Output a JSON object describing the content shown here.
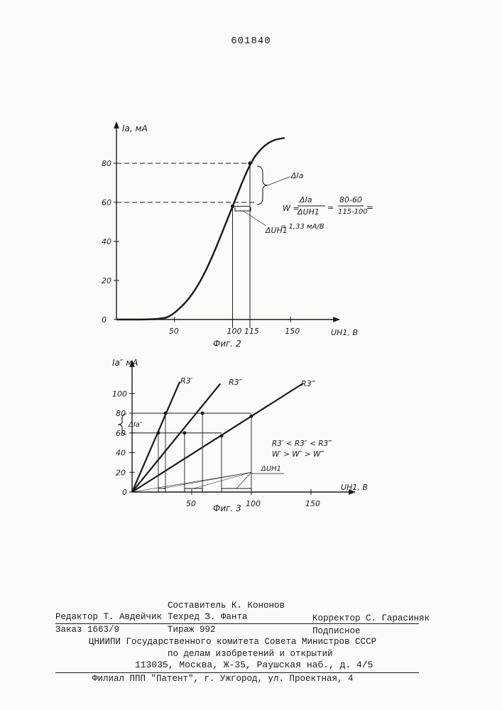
{
  "page_number": "601840",
  "figures": {
    "fig2": {
      "caption": "Фиг. 2",
      "y_axis_label": "Ia, мА",
      "x_axis_label": "UН1, В",
      "y_ticks": [
        "0",
        "20",
        "40",
        "60",
        "80"
      ],
      "x_ticks": [
        "50",
        "100",
        "115",
        "150"
      ],
      "delta_ia_label": "ΔIa",
      "delta_u_label": "ΔUН1",
      "formula_lhs": "W =",
      "formula_num": "ΔIa",
      "formula_den": "ΔUН1",
      "formula_eq": "=",
      "formula_num2": "80-60",
      "formula_den2": "115-100",
      "formula_eq2": "=",
      "formula_result": "= 1,33 мА/В"
    },
    "fig3": {
      "caption": "Фиг. 3",
      "y_axis_label": "Ia″ мА",
      "x_axis_label": "UН1, В",
      "y_ticks": [
        "0",
        "20",
        "40",
        "60",
        "80",
        "100"
      ],
      "x_ticks": [
        "50",
        "100",
        "150"
      ],
      "line_labels": [
        "R3′",
        "R3″",
        "R3‴"
      ],
      "delta_ia_label": "ΔIa″",
      "delta_u_label": "ΔUН1",
      "relation_r": "R3′ < R3″ < R3‴",
      "relation_w": "W′ > W″ > W‴"
    }
  },
  "chart_data": [
    {
      "type": "line",
      "title": "Фиг. 2",
      "xlabel": "UН1, В",
      "ylabel": "Ia, мА",
      "xlim": [
        0,
        160
      ],
      "ylim": [
        0,
        90
      ],
      "x_ticks": [
        50,
        100,
        115,
        150
      ],
      "y_ticks": [
        0,
        20,
        40,
        60,
        80
      ],
      "series": [
        {
          "x": [
            0,
            40,
            50,
            65,
            80,
            100,
            115,
            125,
            135,
            145
          ],
          "y": [
            0,
            0,
            3,
            12,
            28,
            58,
            80,
            88,
            92,
            93
          ]
        }
      ],
      "annotations": [
        {
          "text": "ΔIa",
          "from": [
            115,
            60
          ],
          "to": [
            115,
            80
          ]
        },
        {
          "text": "ΔUН1",
          "from": [
            100,
            58
          ],
          "to": [
            115,
            58
          ]
        }
      ]
    },
    {
      "type": "line",
      "title": "Фиг. 3",
      "xlabel": "UН1, В",
      "ylabel": "Ia″ мА",
      "xlim": [
        0,
        150
      ],
      "ylim": [
        0,
        110
      ],
      "x_ticks": [
        50,
        100,
        150
      ],
      "y_ticks": [
        0,
        20,
        40,
        60,
        80,
        100
      ],
      "series": [
        {
          "name": "R3′",
          "x": [
            0,
            22,
            28,
            40
          ],
          "y": [
            0,
            60,
            80,
            112
          ]
        },
        {
          "name": "R3″",
          "x": [
            0,
            44,
            59,
            74
          ],
          "y": [
            0,
            60,
            80,
            110
          ]
        },
        {
          "name": "R3‴",
          "x": [
            0,
            75,
            100,
            143
          ],
          "y": [
            0,
            57,
            77,
            110
          ]
        }
      ],
      "annotations": [
        {
          "text": "ΔIa″",
          "from": [
            0,
            60
          ],
          "to": [
            0,
            80
          ]
        },
        {
          "text": "ΔUН1",
          "from": [
            100,
            20
          ],
          "to": [
            100,
            20
          ]
        }
      ]
    }
  ],
  "imprint": {
    "compiler": "Составитель К. Кононов",
    "editor": "Редактор  Т. Авдейчик",
    "techred": "Техред З. Фанта",
    "corrector": "Корректор С. Гарасиняк",
    "order": "Заказ 1663/9",
    "circulation": "Тираж 992",
    "subscription": "Подписное",
    "org1": "ЦНИИПИ Государственного комитета Совета Министров СССР",
    "org2": "по делам изобретений и открытий",
    "address": "113035, Москва, Ж-35, Раушская наб., д. 4/5",
    "branch": "Филиал ППП \"Патент\", г. Ужгород, ул. Проектная, 4"
  }
}
